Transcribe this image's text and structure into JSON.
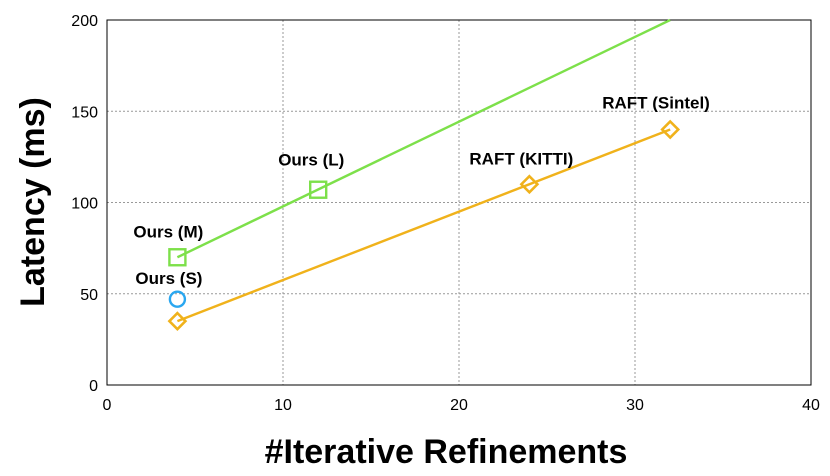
{
  "chart_data": {
    "type": "line",
    "title": "",
    "xlabel": "#Iterative Refinements",
    "ylabel": "Latency (ms)",
    "xlim": [
      0,
      40
    ],
    "ylim": [
      0,
      200
    ],
    "xticks": [
      0,
      10,
      20,
      30,
      40
    ],
    "yticks": [
      0,
      50,
      100,
      150,
      200
    ],
    "grid": true,
    "series": [
      {
        "color": "#7de04a",
        "marker": "square",
        "points": [
          {
            "x": 4,
            "y": 70,
            "label": "Ours (M)"
          },
          {
            "x": 12,
            "y": 107,
            "label": "Ours (L)"
          }
        ],
        "trend_line": {
          "x": [
            4,
            32
          ],
          "y": [
            70,
            200
          ]
        }
      },
      {
        "color": "#f0b21b",
        "marker": "diamond",
        "points": [
          {
            "x": 4,
            "y": 35,
            "label": ""
          },
          {
            "x": 24,
            "y": 110,
            "label": "RAFT (KITTI)"
          },
          {
            "x": 32,
            "y": 140,
            "label": "RAFT (Sintel)"
          }
        ],
        "trend_line": {
          "x": [
            4,
            32
          ],
          "y": [
            35,
            140
          ]
        }
      },
      {
        "color": "#2aa7f0",
        "marker": "circle",
        "points": [
          {
            "x": 4,
            "y": 47,
            "label": "Ours (S)"
          }
        ]
      }
    ]
  }
}
